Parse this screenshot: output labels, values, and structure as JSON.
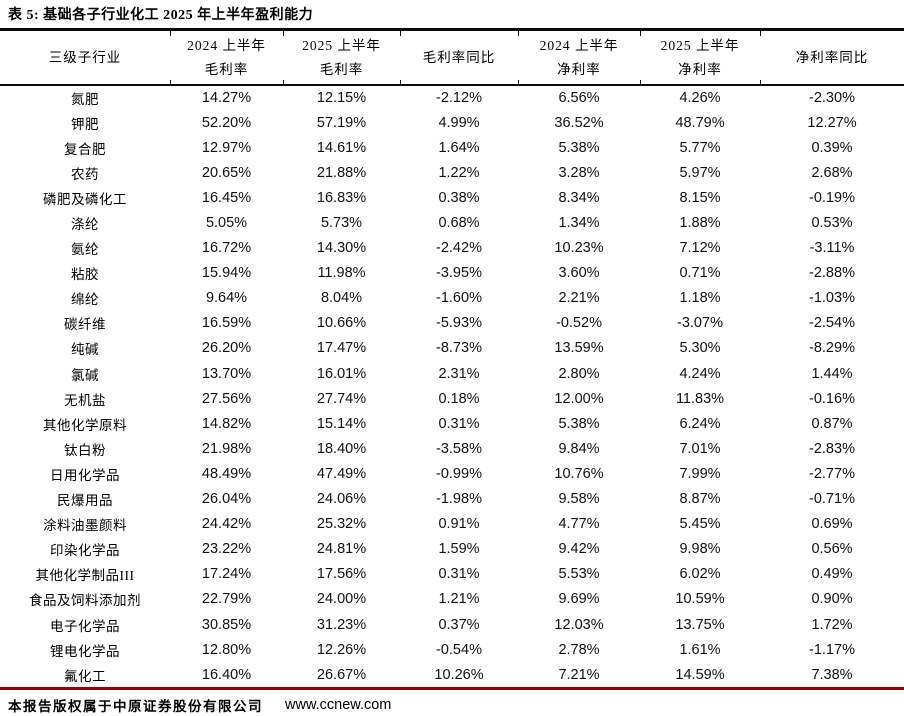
{
  "colors": {
    "accent_line": "#8B0000",
    "rule_color": "#0a0a0a",
    "text": "#000000"
  },
  "table": {
    "title": "表 5: 基础各子行业化工 2025 年上半年盈利能力",
    "columns": [
      {
        "line1": "三级子行业",
        "line2": ""
      },
      {
        "line1": "2024 上半年",
        "line2": "毛利率"
      },
      {
        "line1": "2025 上半年",
        "line2": "毛利率"
      },
      {
        "line1": "毛利率同比",
        "line2": ""
      },
      {
        "line1": "2024 上半年",
        "line2": "净利率"
      },
      {
        "line1": "2025 上半年",
        "line2": "净利率"
      },
      {
        "line1": "净利率同比",
        "line2": ""
      }
    ],
    "rows": [
      {
        "industry": "氮肥",
        "values": [
          "14.27%",
          "12.15%",
          "-2.12%",
          "6.56%",
          "4.26%",
          "-2.30%"
        ]
      },
      {
        "industry": "钾肥",
        "values": [
          "52.20%",
          "57.19%",
          "4.99%",
          "36.52%",
          "48.79%",
          "12.27%"
        ]
      },
      {
        "industry": "复合肥",
        "values": [
          "12.97%",
          "14.61%",
          "1.64%",
          "5.38%",
          "5.77%",
          "0.39%"
        ]
      },
      {
        "industry": "农药",
        "values": [
          "20.65%",
          "21.88%",
          "1.22%",
          "3.28%",
          "5.97%",
          "2.68%"
        ]
      },
      {
        "industry": "磷肥及磷化工",
        "values": [
          "16.45%",
          "16.83%",
          "0.38%",
          "8.34%",
          "8.15%",
          "-0.19%"
        ]
      },
      {
        "industry": "涤纶",
        "values": [
          "5.05%",
          "5.73%",
          "0.68%",
          "1.34%",
          "1.88%",
          "0.53%"
        ]
      },
      {
        "industry": "氨纶",
        "values": [
          "16.72%",
          "14.30%",
          "-2.42%",
          "10.23%",
          "7.12%",
          "-3.11%"
        ]
      },
      {
        "industry": "粘胶",
        "values": [
          "15.94%",
          "11.98%",
          "-3.95%",
          "3.60%",
          "0.71%",
          "-2.88%"
        ]
      },
      {
        "industry": "绵纶",
        "values": [
          "9.64%",
          "8.04%",
          "-1.60%",
          "2.21%",
          "1.18%",
          "-1.03%"
        ]
      },
      {
        "industry": "碳纤维",
        "values": [
          "16.59%",
          "10.66%",
          "-5.93%",
          "-0.52%",
          "-3.07%",
          "-2.54%"
        ]
      },
      {
        "industry": "纯碱",
        "values": [
          "26.20%",
          "17.47%",
          "-8.73%",
          "13.59%",
          "5.30%",
          "-8.29%"
        ]
      },
      {
        "industry": "氯碱",
        "values": [
          "13.70%",
          "16.01%",
          "2.31%",
          "2.80%",
          "4.24%",
          "1.44%"
        ]
      },
      {
        "industry": "无机盐",
        "values": [
          "27.56%",
          "27.74%",
          "0.18%",
          "12.00%",
          "11.83%",
          "-0.16%"
        ]
      },
      {
        "industry": "其他化学原料",
        "values": [
          "14.82%",
          "15.14%",
          "0.31%",
          "5.38%",
          "6.24%",
          "0.87%"
        ]
      },
      {
        "industry": "钛白粉",
        "values": [
          "21.98%",
          "18.40%",
          "-3.58%",
          "9.84%",
          "7.01%",
          "-2.83%"
        ]
      },
      {
        "industry": "日用化学品",
        "values": [
          "48.49%",
          "47.49%",
          "-0.99%",
          "10.76%",
          "7.99%",
          "-2.77%"
        ]
      },
      {
        "industry": "民爆用品",
        "values": [
          "26.04%",
          "24.06%",
          "-1.98%",
          "9.58%",
          "8.87%",
          "-0.71%"
        ]
      },
      {
        "industry": "涂料油墨颜料",
        "values": [
          "24.42%",
          "25.32%",
          "0.91%",
          "4.77%",
          "5.45%",
          "0.69%"
        ]
      },
      {
        "industry": "印染化学品",
        "values": [
          "23.22%",
          "24.81%",
          "1.59%",
          "9.42%",
          "9.98%",
          "0.56%"
        ]
      },
      {
        "industry": "其他化学制品III",
        "values": [
          "17.24%",
          "17.56%",
          "0.31%",
          "5.53%",
          "6.02%",
          "0.49%"
        ]
      },
      {
        "industry": "食品及饲料添加剂",
        "values": [
          "22.79%",
          "24.00%",
          "1.21%",
          "9.69%",
          "10.59%",
          "0.90%"
        ]
      },
      {
        "industry": "电子化学品",
        "values": [
          "30.85%",
          "31.23%",
          "0.37%",
          "12.03%",
          "13.75%",
          "1.72%"
        ]
      },
      {
        "industry": "锂电化学品",
        "values": [
          "12.80%",
          "12.26%",
          "-0.54%",
          "2.78%",
          "1.61%",
          "-1.17%"
        ]
      },
      {
        "industry": "氟化工",
        "values": [
          "16.40%",
          "26.67%",
          "10.26%",
          "7.21%",
          "14.59%",
          "7.38%"
        ]
      }
    ]
  },
  "footer": {
    "copyright": "本报告版权属于中原证券股份有限公司",
    "url": "www.ccnew.com"
  }
}
